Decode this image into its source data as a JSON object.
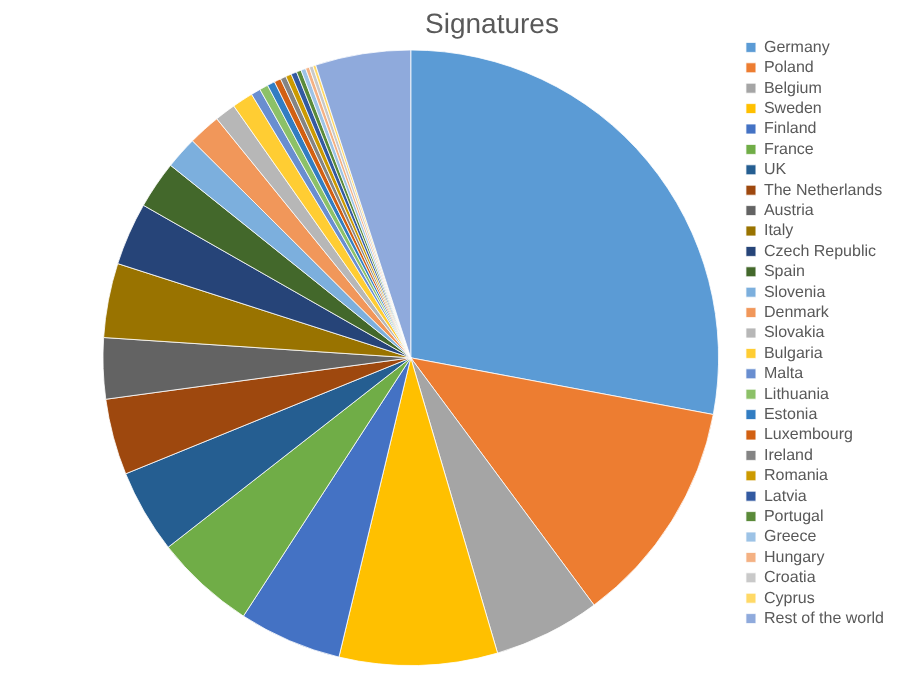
{
  "chart_data": {
    "type": "pie",
    "title": "Signatures",
    "legend": "right",
    "categories": [
      "Germany",
      "Poland",
      "Belgium",
      "Sweden",
      "Finland",
      "France",
      "UK",
      "The Netherlands",
      "Austria",
      "Italy",
      "Czech Republic",
      "Spain",
      "Slovenia",
      "Denmark",
      "Slovakia",
      "Bulgaria",
      "Malta",
      "Lithuania",
      "Estonia",
      "Luxembourg",
      "Ireland",
      "Romania",
      "Latvia",
      "Portugal",
      "Greece",
      "Hungary",
      "Croatia",
      "Cyprus",
      "Rest of the world"
    ],
    "values": [
      27.95,
      11.9,
      5.6,
      8.3,
      5.4,
      5.3,
      4.4,
      4.0,
      3.2,
      3.9,
      3.3,
      2.5,
      1.7,
      1.7,
      1.1,
      1.1,
      0.5,
      0.45,
      0.4,
      0.35,
      0.3,
      0.3,
      0.3,
      0.25,
      0.25,
      0.2,
      0.2,
      0.15,
      5.0
    ],
    "colors": [
      "#5b9bd5",
      "#ed7d31",
      "#a5a5a5",
      "#ffc000",
      "#4472c4",
      "#70ad47",
      "#255e91",
      "#9e480e",
      "#636363",
      "#997300",
      "#264478",
      "#43682b",
      "#7cafdd",
      "#f1975a",
      "#b7b7b7",
      "#ffcd33",
      "#698ed0",
      "#8cc168",
      "#327dc2",
      "#d26012",
      "#848484",
      "#cc9a00",
      "#335aa1",
      "#5a8a39",
      "#9dc3e6",
      "#f4b183",
      "#c9c9c9",
      "#ffd966",
      "#8faadc"
    ]
  }
}
